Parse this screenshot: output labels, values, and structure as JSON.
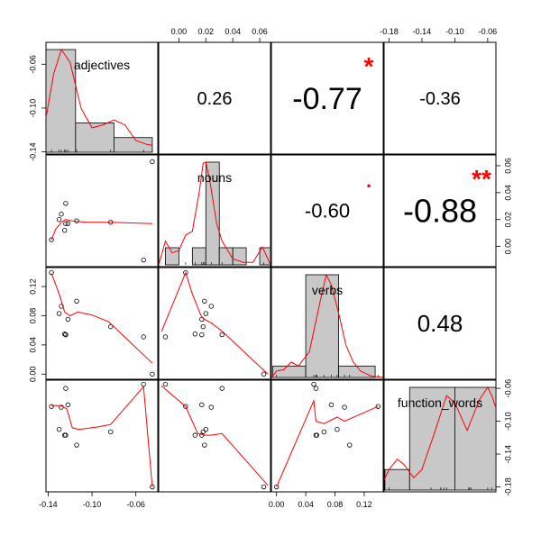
{
  "chart_data": {
    "type": "scatter-matrix",
    "variables": [
      "adjectives",
      "nouns",
      "verbs",
      "function_words"
    ],
    "colors": {
      "smoother": "#ff0000",
      "stars": "#ff0000",
      "hist_fill": "#c8c8c8",
      "frame": "#000000"
    },
    "points": {
      "adjectives": [
        -0.137,
        -0.13,
        -0.128,
        -0.125,
        -0.124,
        -0.124,
        -0.122,
        -0.114,
        -0.083,
        -0.053,
        -0.045
      ],
      "nouns": [
        0.005,
        0.02,
        0.024,
        0.012,
        0.032,
        0.017,
        0.017,
        0.019,
        0.018,
        -0.01,
        0.063
      ],
      "verbs": [
        0.139,
        0.083,
        0.093,
        0.055,
        0.054,
        0.054,
        0.075,
        0.1,
        0.065,
        0.051,
        0.0
      ],
      "function_words": [
        -0.082,
        -0.11,
        -0.083,
        -0.117,
        -0.06,
        -0.117,
        -0.08,
        -0.129,
        -0.113,
        -0.055,
        -0.18
      ]
    },
    "axis_ticks": {
      "adjectives": [
        "-0.14",
        "-0.10",
        "-0.06"
      ],
      "nouns": [
        "0.00",
        "0.02",
        "0.04",
        "0.06"
      ],
      "verbs": [
        "0.00",
        "0.04",
        "0.08",
        "0.12"
      ],
      "function_words": [
        "-0.18",
        "-0.14",
        "-0.10",
        "-0.06"
      ]
    },
    "axis_tick_values": {
      "adjectives": [
        -0.14,
        -0.1,
        -0.06
      ],
      "nouns": [
        0.0,
        0.02,
        0.04,
        0.06
      ],
      "verbs": [
        0.0,
        0.04,
        0.08,
        0.12
      ],
      "function_words": [
        -0.18,
        -0.14,
        -0.1,
        -0.06
      ]
    },
    "ranges": {
      "adjectives": [
        -0.142,
        -0.04
      ],
      "nouns": [
        -0.015,
        0.068
      ],
      "verbs": [
        -0.007,
        0.146
      ],
      "function_words": [
        -0.186,
        -0.05
      ]
    },
    "correlations": [
      {
        "row": 0,
        "col": 1,
        "text": "0.26",
        "size": 20,
        "stars": ""
      },
      {
        "row": 0,
        "col": 2,
        "text": "-0.77",
        "size": 34,
        "stars": "*"
      },
      {
        "row": 0,
        "col": 3,
        "text": "-0.36",
        "size": 20,
        "stars": ""
      },
      {
        "row": 1,
        "col": 2,
        "text": "-0.60",
        "size": 22,
        "stars": "."
      },
      {
        "row": 1,
        "col": 3,
        "text": "-0.88",
        "size": 36,
        "stars": "**"
      },
      {
        "row": 2,
        "col": 3,
        "text": "0.48",
        "size": 26,
        "stars": ""
      }
    ],
    "histograms": {
      "adjectives": {
        "breaks": [
          -0.142,
          -0.115,
          -0.08,
          -0.045
        ],
        "counts": [
          7,
          2,
          1
        ]
      },
      "nouns": {
        "breaks": [
          -0.01,
          0.0,
          0.01,
          0.02,
          0.03,
          0.04,
          0.05,
          0.06,
          0.068
        ],
        "counts": [
          1,
          0,
          1,
          6,
          1,
          1,
          0,
          1
        ]
      },
      "verbs": {
        "breaks": [
          -0.005,
          0.04,
          0.085,
          0.135
        ],
        "counts": [
          1,
          9,
          1
        ]
      },
      "function_words": {
        "breaks": [
          -0.185,
          -0.155,
          -0.1,
          -0.05
        ],
        "counts": [
          1,
          5,
          5
        ]
      }
    },
    "densities": {
      "adjectives": [
        [
          -0.142,
          0.35
        ],
        [
          -0.135,
          0.8
        ],
        [
          -0.128,
          1.05
        ],
        [
          -0.12,
          0.92
        ],
        [
          -0.11,
          0.45
        ],
        [
          -0.1,
          0.25
        ],
        [
          -0.09,
          0.28
        ],
        [
          -0.08,
          0.33
        ],
        [
          -0.07,
          0.28
        ],
        [
          -0.06,
          0.12
        ],
        [
          -0.05,
          0.08
        ],
        [
          -0.045,
          0.07
        ]
      ],
      "nouns": [
        [
          -0.015,
          0.0
        ],
        [
          -0.01,
          0.2
        ],
        [
          -0.005,
          0.1
        ],
        [
          0.0,
          0.12
        ],
        [
          0.005,
          0.25
        ],
        [
          0.01,
          0.28
        ],
        [
          0.015,
          0.6
        ],
        [
          0.018,
          0.85
        ],
        [
          0.02,
          0.86
        ],
        [
          0.023,
          0.7
        ],
        [
          0.028,
          0.35
        ],
        [
          0.032,
          0.2
        ],
        [
          0.04,
          0.05
        ],
        [
          0.048,
          0.02
        ],
        [
          0.055,
          0.02
        ],
        [
          0.062,
          0.15
        ],
        [
          0.068,
          0.0
        ]
      ],
      "verbs": [
        [
          -0.007,
          0.0
        ],
        [
          0.0,
          0.05
        ],
        [
          0.01,
          0.06
        ],
        [
          0.02,
          0.12
        ],
        [
          0.03,
          0.09
        ],
        [
          0.045,
          0.2
        ],
        [
          0.06,
          0.6
        ],
        [
          0.068,
          0.8
        ],
        [
          0.075,
          0.72
        ],
        [
          0.085,
          0.5
        ],
        [
          0.095,
          0.25
        ],
        [
          0.105,
          0.12
        ],
        [
          0.115,
          0.05
        ],
        [
          0.13,
          0.01
        ],
        [
          0.146,
          0.0
        ]
      ],
      "function_words": [
        [
          -0.186,
          0.1
        ],
        [
          -0.18,
          0.2
        ],
        [
          -0.17,
          0.3
        ],
        [
          -0.162,
          0.25
        ],
        [
          -0.15,
          0.12
        ],
        [
          -0.14,
          0.2
        ],
        [
          -0.125,
          0.55
        ],
        [
          -0.11,
          0.92
        ],
        [
          -0.1,
          0.85
        ],
        [
          -0.085,
          0.58
        ],
        [
          -0.07,
          0.88
        ],
        [
          -0.06,
          1.0
        ],
        [
          -0.055,
          0.92
        ],
        [
          -0.05,
          0.8
        ]
      ]
    },
    "smooths": {
      "1-0": [
        [
          -0.137,
          0.005
        ],
        [
          -0.133,
          0.013
        ],
        [
          -0.128,
          0.018
        ],
        [
          -0.124,
          0.02
        ],
        [
          -0.118,
          0.019
        ],
        [
          -0.105,
          0.018
        ],
        [
          -0.085,
          0.018
        ],
        [
          -0.045,
          0.017
        ]
      ],
      "2-0": [
        [
          -0.137,
          0.138
        ],
        [
          -0.13,
          0.11
        ],
        [
          -0.125,
          0.085
        ],
        [
          -0.12,
          0.08
        ],
        [
          -0.113,
          0.085
        ],
        [
          -0.1,
          0.081
        ],
        [
          -0.085,
          0.072
        ],
        [
          -0.045,
          0.015
        ]
      ],
      "3-0": [
        [
          -0.137,
          -0.081
        ],
        [
          -0.128,
          -0.081
        ],
        [
          -0.123,
          -0.085
        ],
        [
          -0.118,
          -0.108
        ],
        [
          -0.112,
          -0.11
        ],
        [
          -0.095,
          -0.107
        ],
        [
          -0.083,
          -0.104
        ],
        [
          -0.053,
          -0.058
        ],
        [
          -0.045,
          -0.18
        ]
      ],
      "2-1": [
        [
          -0.013,
          0.058
        ],
        [
          0.005,
          0.139
        ],
        [
          0.01,
          0.11
        ],
        [
          0.016,
          0.082
        ],
        [
          0.018,
          0.076
        ],
        [
          0.024,
          0.07
        ],
        [
          0.032,
          0.059
        ],
        [
          0.066,
          0.0
        ]
      ],
      "3-1": [
        [
          -0.013,
          -0.057
        ],
        [
          0.005,
          -0.082
        ],
        [
          0.014,
          -0.115
        ],
        [
          0.019,
          -0.117
        ],
        [
          0.024,
          -0.117
        ],
        [
          0.032,
          -0.115
        ],
        [
          0.066,
          -0.178
        ]
      ],
      "3-2": [
        [
          0.0,
          -0.18
        ],
        [
          0.051,
          -0.075
        ],
        [
          0.054,
          -0.1
        ],
        [
          0.065,
          -0.103
        ],
        [
          0.083,
          -0.095
        ],
        [
          0.093,
          -0.1
        ],
        [
          0.139,
          -0.082
        ]
      ]
    }
  }
}
